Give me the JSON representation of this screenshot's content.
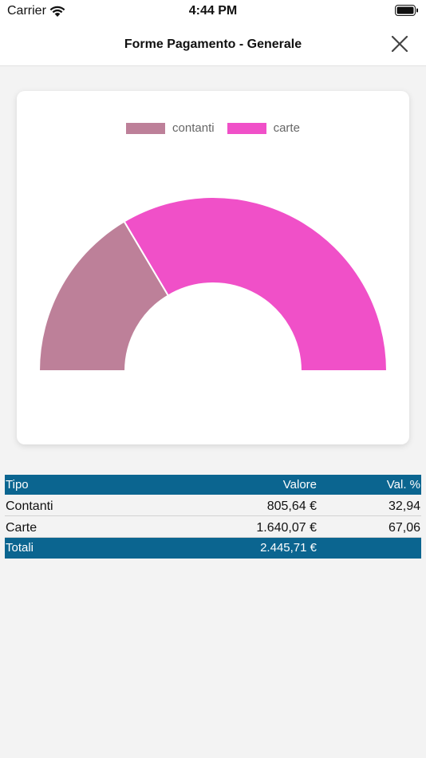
{
  "status_bar": {
    "carrier": "Carrier",
    "time": "4:44 PM",
    "icons": [
      "wifi-icon",
      "battery-icon"
    ]
  },
  "nav": {
    "title": "Forme Pagamento - Generale",
    "close_icon": "close-icon"
  },
  "chart_data": {
    "type": "pie",
    "style": "half-doughnut",
    "legend": [
      "contanti",
      "carte"
    ],
    "legend_position": "top",
    "categories": [
      "contanti",
      "carte"
    ],
    "values": [
      805.64,
      1640.07
    ],
    "colors": [
      "#bd8099",
      "#f050c8"
    ]
  },
  "table": {
    "headers": {
      "tipo": "Tipo",
      "valore": "Valore",
      "perc": "Val. %"
    },
    "rows": [
      {
        "tipo": "Contanti",
        "valore": "805,64 €",
        "perc": "32,94"
      },
      {
        "tipo": "Carte",
        "valore": "1.640,07 €",
        "perc": "67,06"
      }
    ],
    "total": {
      "label": "Totali",
      "valore": "2.445,71 €",
      "perc": ""
    }
  },
  "colors": {
    "header_bg": "#0b6590",
    "background": "#f3f3f3"
  }
}
